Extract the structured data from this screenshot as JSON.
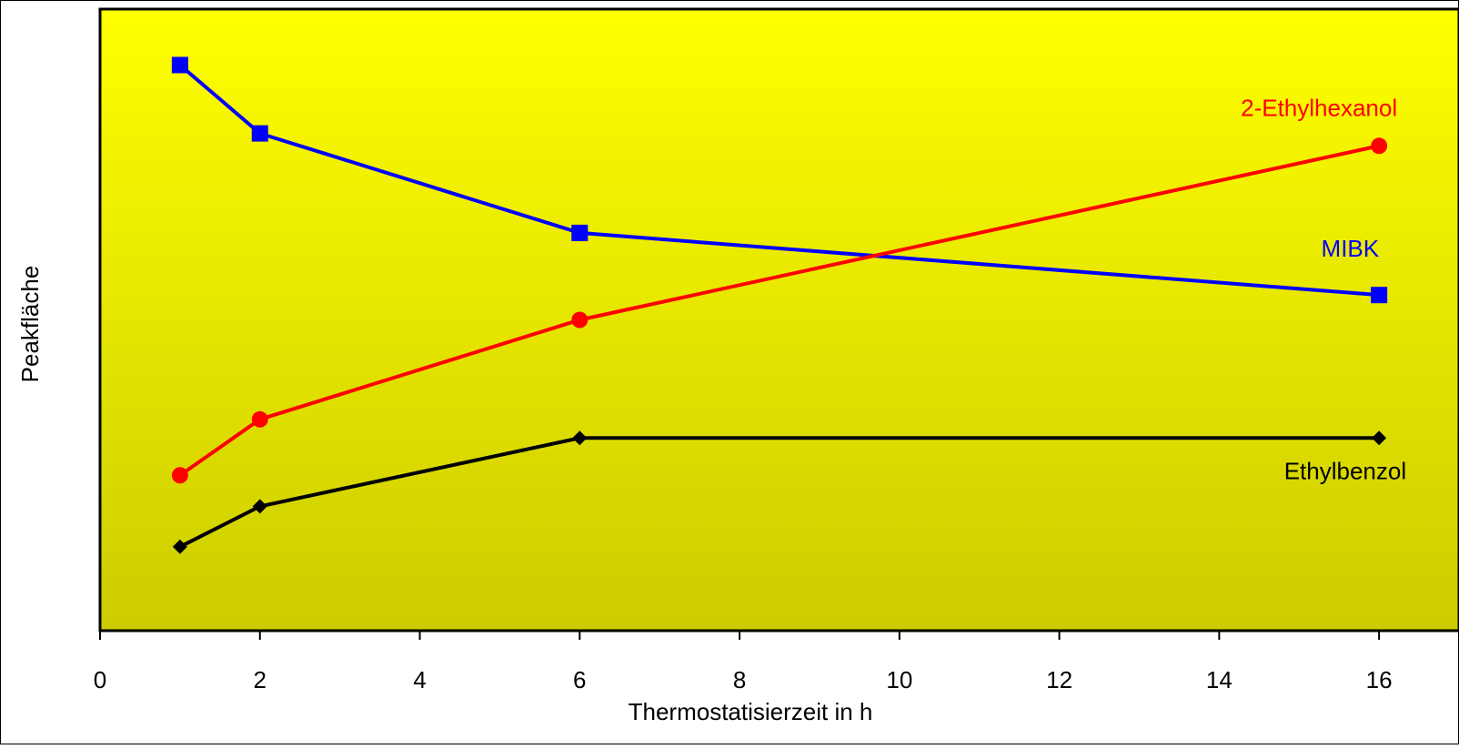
{
  "chart_data": {
    "type": "line",
    "title": "",
    "xlabel": "Thermostatisierzeit in h",
    "ylabel": "Peakfläche",
    "xlim": [
      0,
      17
    ],
    "ylim": [
      0,
      100
    ],
    "xticks": [
      0,
      2,
      4,
      6,
      8,
      10,
      12,
      14,
      16
    ],
    "yticks_shown": false,
    "grid": false,
    "legend": "inline-labels",
    "background": {
      "top": "#ffff00",
      "bottom": "#cccc00"
    },
    "series": [
      {
        "name": "MIBK",
        "color": "#0000ff",
        "marker": "square",
        "x": [
          1,
          2,
          6,
          16
        ],
        "y": [
          91,
          80,
          64,
          54
        ]
      },
      {
        "name": "2-Ethylhexanol",
        "color": "#ff0000",
        "marker": "circle",
        "x": [
          1,
          2,
          6,
          16
        ],
        "y": [
          25,
          34,
          50,
          78
        ]
      },
      {
        "name": "Ethylbenzol",
        "color": "#000000",
        "marker": "diamond",
        "x": [
          1,
          2,
          6,
          16
        ],
        "y": [
          13.5,
          20,
          31,
          31
        ]
      }
    ]
  }
}
